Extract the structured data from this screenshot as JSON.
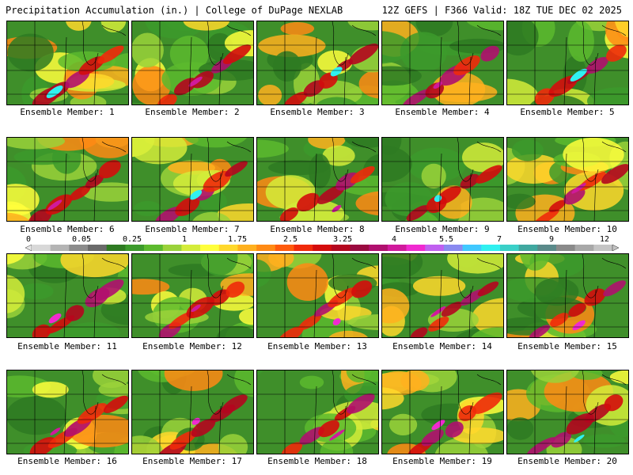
{
  "header": {
    "left": "Precipitation Accumulation (in.) | College of DuPage NEXLAB",
    "right": "12Z GEFS | F366 Valid: 18Z TUE DEC 02 2025"
  },
  "members": [
    "Ensemble Member: 1",
    "Ensemble Member: 2",
    "Ensemble Member: 3",
    "Ensemble Member: 4",
    "Ensemble Member: 5",
    "Ensemble Member: 6",
    "Ensemble Member: 7",
    "Ensemble Member: 8",
    "Ensemble Member: 9",
    "Ensemble Member: 10",
    "Ensemble Member: 11",
    "Ensemble Member: 12",
    "Ensemble Member: 13",
    "Ensemble Member: 14",
    "Ensemble Member: 15",
    "Ensemble Member: 16",
    "Ensemble Member: 17",
    "Ensemble Member: 18",
    "Ensemble Member: 19",
    "Ensemble Member: 20"
  ],
  "colorbar": {
    "tick_labels": [
      "0",
      "0.05",
      "0.25",
      "1",
      "1.75",
      "2.5",
      "3.25",
      "4",
      "5.5",
      "7",
      "9",
      "12"
    ],
    "colors": [
      "#d8d8d8",
      "#b4b4b4",
      "#8c8c8c",
      "#6a6a6a",
      "#2e7a22",
      "#3c9a2c",
      "#5cba2e",
      "#9ad23a",
      "#d4ec3a",
      "#ffff3c",
      "#ffd82c",
      "#ffb01e",
      "#ff8a14",
      "#ff5a0c",
      "#f02a0a",
      "#d40c0c",
      "#b4061e",
      "#9a0a40",
      "#b0106e",
      "#d01a9c",
      "#f02ad0",
      "#c060f0",
      "#8a8af0",
      "#40c8ff",
      "#30f0f0",
      "#3ad0c8",
      "#40a8a0",
      "#5a8a8a",
      "#8a8a8a",
      "#a8a8a8",
      "#c4c4c4"
    ],
    "colors_note": "bands"
  },
  "palette": {
    "greens": [
      "#2e7a22",
      "#3c9a2c",
      "#5cba2e",
      "#9ad23a"
    ],
    "warm": [
      "#d4ec3a",
      "#ffff3c",
      "#ffd82c",
      "#ffb01e",
      "#ff8a14"
    ],
    "heavy": [
      "#f02a0a",
      "#d40c0c",
      "#b4061e",
      "#b0106e",
      "#d01a9c",
      "#f02ad0",
      "#30f0f0"
    ]
  }
}
